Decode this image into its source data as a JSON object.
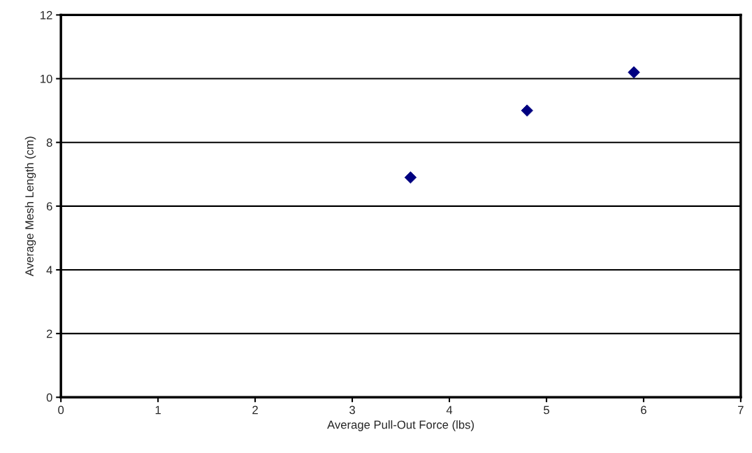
{
  "chart_data": {
    "type": "scatter",
    "xlabel": "Average Pull-Out Force (lbs)",
    "ylabel": "Average Mesh Length (cm)",
    "x": [
      3.6,
      4.8,
      5.9
    ],
    "series": [
      {
        "color": "#000080",
        "values": [
          6.9,
          9.0,
          10.2
        ]
      }
    ],
    "xlim": [
      0,
      7
    ],
    "xticks": [
      0,
      1,
      2,
      3,
      4,
      5,
      6,
      7
    ],
    "ylim": [
      0,
      12
    ],
    "yticks": [
      0,
      2,
      4,
      6,
      8,
      10,
      12
    ],
    "grid": "y",
    "marker": "diamond"
  }
}
